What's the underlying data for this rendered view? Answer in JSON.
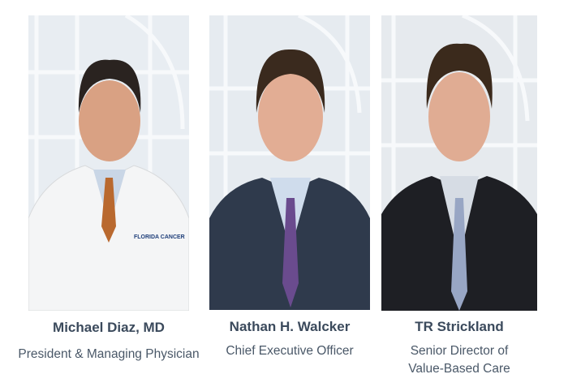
{
  "people": [
    {
      "name": "Michael Diaz, MD",
      "title": "President & Managing Physician",
      "attire": "white-coat",
      "logo_text": "FLORIDA CANCER SPECIALISTS & Research Institute"
    },
    {
      "name": "Nathan H. Walcker",
      "title": "Chief Executive Officer",
      "attire": "navy-suit"
    },
    {
      "name": "TR Strickland",
      "title": "Senior Director of Value-Based Care",
      "attire": "black-suit"
    }
  ],
  "colors": {
    "name": "#3b4a5c",
    "title": "#4a5868"
  }
}
